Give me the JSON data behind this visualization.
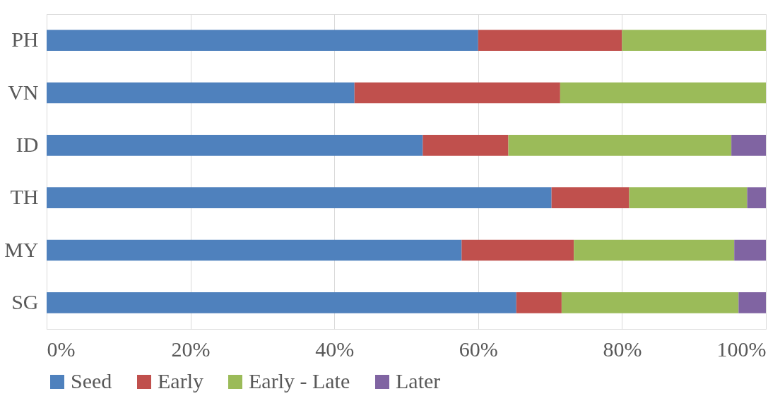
{
  "chart_data": {
    "type": "bar",
    "orientation": "horizontal",
    "stacked": true,
    "categories": [
      "PH",
      "VN",
      "ID",
      "TH",
      "MY",
      "SG"
    ],
    "series": [
      {
        "name": "Seed",
        "color": "#4f81bd",
        "values": [
          60.0,
          42.8,
          52.3,
          70.2,
          57.7,
          65.3
        ]
      },
      {
        "name": "Early",
        "color": "#c0504d",
        "values": [
          20.0,
          28.6,
          11.9,
          10.8,
          15.6,
          6.3
        ]
      },
      {
        "name": "Early - Late",
        "color": "#9bbb59",
        "values": [
          20.0,
          28.6,
          31.0,
          16.4,
          22.3,
          24.6
        ]
      },
      {
        "name": "Later",
        "color": "#8064a2",
        "values": [
          0,
          0,
          4.8,
          2.6,
          4.4,
          3.8
        ]
      }
    ],
    "xlim": [
      0,
      100
    ],
    "xticks": [
      {
        "value": 0,
        "label": "0%"
      },
      {
        "value": 20,
        "label": "20%"
      },
      {
        "value": 40,
        "label": "40%"
      },
      {
        "value": 60,
        "label": "60%"
      },
      {
        "value": 80,
        "label": "80%"
      },
      {
        "value": 100,
        "label": "100%"
      }
    ],
    "grid": "x",
    "legend": "bottom"
  }
}
